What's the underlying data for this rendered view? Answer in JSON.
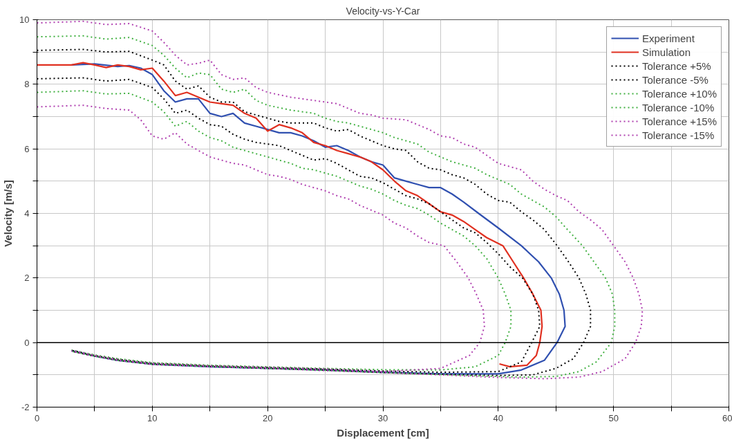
{
  "chart_data": {
    "type": "line",
    "title": "Velocity-vs-Y-Car",
    "xlabel": "Displacement [cm]",
    "ylabel": "Velocity [m/s]",
    "xlim": [
      0,
      60
    ],
    "ylim": [
      -2,
      10
    ],
    "xticks": [
      0,
      {
        "value": 5,
        "label": null
      },
      10,
      {
        "value": 15,
        "label": null
      },
      20,
      {
        "value": 25,
        "label": null
      },
      30,
      {
        "value": 35,
        "label": null
      },
      40,
      {
        "value": 45,
        "label": null
      },
      50,
      {
        "value": 55,
        "label": null
      },
      60
    ],
    "yticks": [
      -2,
      {
        "value": -1,
        "label": null
      },
      0,
      {
        "value": 1,
        "label": null
      },
      2,
      {
        "value": 3,
        "label": null
      },
      4,
      {
        "value": 5,
        "label": null
      },
      6,
      {
        "value": 7,
        "label": null
      },
      8,
      {
        "value": 9,
        "label": null
      },
      10
    ],
    "grid": true,
    "legend": "top right",
    "marker": "none",
    "ref_lines": [
      {
        "axis": "y",
        "value": 0,
        "label": null,
        "color": "#000000"
      }
    ],
    "series": [
      {
        "name": "Experiment",
        "color": "#3050b0",
        "line_style": "solid",
        "x": [
          3,
          5,
          7,
          8,
          9,
          10,
          11,
          12,
          13,
          14,
          15,
          16,
          17,
          18,
          19,
          20,
          21,
          22,
          23,
          24,
          25,
          26,
          27,
          28,
          29,
          30,
          31,
          32,
          33,
          34,
          35,
          36,
          37,
          38.3,
          40,
          42,
          43.5,
          44.6,
          45.3,
          45.7,
          45.8,
          45.1,
          44,
          42,
          40,
          35,
          30,
          25,
          20,
          15,
          10,
          7,
          5,
          3
        ],
        "values": [
          8.6,
          8.63,
          8.55,
          8.58,
          8.5,
          8.3,
          7.8,
          7.45,
          7.55,
          7.55,
          7.1,
          7.0,
          7.1,
          6.8,
          6.7,
          6.6,
          6.5,
          6.5,
          6.4,
          6.25,
          6.05,
          6.1,
          5.95,
          5.75,
          5.6,
          5.5,
          5.1,
          5.0,
          4.9,
          4.8,
          4.8,
          4.6,
          4.35,
          4.0,
          3.55,
          3.0,
          2.5,
          2.0,
          1.5,
          1.0,
          0.5,
          0,
          -0.55,
          -0.85,
          -0.97,
          -0.97,
          -0.92,
          -0.85,
          -0.8,
          -0.75,
          -0.67,
          -0.55,
          -0.42,
          -0.25
        ]
      },
      {
        "name": "Simulation",
        "color": "#e03020",
        "line_style": "solid",
        "x": [
          0,
          3,
          4,
          5,
          6,
          7,
          8,
          9,
          10,
          11,
          12,
          13,
          14,
          15,
          16,
          17,
          18,
          19,
          20,
          21,
          22,
          23,
          24,
          25,
          26,
          27,
          28,
          29,
          30,
          31,
          32,
          33,
          34,
          35,
          36,
          37,
          38,
          39,
          40.4,
          41.3,
          42.2,
          43,
          43.7,
          43.8,
          43.6,
          43.3,
          42.5,
          41,
          40.1
        ],
        "values": [
          8.6,
          8.6,
          8.67,
          8.6,
          8.52,
          8.6,
          8.55,
          8.45,
          8.5,
          8.1,
          7.65,
          7.75,
          7.6,
          7.45,
          7.4,
          7.35,
          7.1,
          6.95,
          6.55,
          6.75,
          6.65,
          6.5,
          6.2,
          6.1,
          5.95,
          5.85,
          5.75,
          5.6,
          5.35,
          5.0,
          4.7,
          4.55,
          4.3,
          4.05,
          3.95,
          3.75,
          3.5,
          3.25,
          3.0,
          2.5,
          2.0,
          1.5,
          1.0,
          0.5,
          0,
          -0.4,
          -0.7,
          -0.75,
          -0.66
        ]
      },
      {
        "name": "Tolerance +5%",
        "color": "#000000",
        "line_style": "dotted",
        "x": [
          0,
          4,
          6,
          8,
          10,
          11,
          12,
          13,
          14,
          15,
          16,
          17,
          18,
          19,
          20,
          21,
          22,
          24,
          25,
          26,
          27,
          28,
          29,
          30,
          31,
          32,
          33,
          34,
          35,
          36,
          37,
          38,
          39,
          40,
          41,
          42,
          43,
          44,
          45,
          46,
          47,
          47.6,
          48,
          48,
          47.4,
          46.5,
          45,
          43,
          40,
          35,
          30,
          25,
          20,
          15,
          10,
          7,
          5,
          3
        ],
        "values": [
          9.05,
          9.08,
          9.0,
          9.02,
          8.75,
          8.6,
          8.1,
          7.85,
          7.95,
          7.6,
          7.45,
          7.45,
          7.15,
          7.05,
          6.95,
          6.85,
          6.8,
          6.8,
          6.65,
          6.55,
          6.6,
          6.4,
          6.25,
          6.1,
          6.0,
          5.95,
          5.6,
          5.4,
          5.35,
          5.2,
          5.1,
          4.9,
          4.6,
          4.4,
          4.35,
          4.05,
          3.8,
          3.5,
          3.05,
          2.55,
          2.0,
          1.5,
          1.0,
          0.5,
          0,
          -0.5,
          -0.8,
          -1.0,
          -1.02,
          -0.98,
          -0.93,
          -0.85,
          -0.8,
          -0.74,
          -0.67,
          -0.55,
          -0.42,
          -0.27
        ]
      },
      {
        "name": "Tolerance -5%",
        "color": "#000000",
        "line_style": "dotted",
        "x": [
          0,
          4,
          6,
          8,
          10,
          11,
          12,
          13,
          14,
          15,
          16,
          17,
          18,
          19,
          20,
          21,
          22,
          23,
          24,
          25,
          26,
          27,
          28,
          29,
          30,
          31,
          32,
          33,
          34,
          35,
          36,
          37,
          38,
          39,
          40,
          41,
          42.1,
          43,
          43.5,
          43.6,
          42.9,
          42,
          40,
          35,
          30,
          25,
          20,
          15,
          10,
          7,
          5,
          3
        ],
        "values": [
          8.17,
          8.2,
          8.1,
          8.15,
          7.9,
          7.55,
          7.1,
          7.2,
          6.95,
          6.75,
          6.7,
          6.45,
          6.3,
          6.2,
          6.15,
          6.1,
          5.95,
          5.8,
          5.65,
          5.7,
          5.55,
          5.35,
          5.15,
          5.1,
          4.95,
          4.75,
          4.55,
          4.45,
          4.3,
          4.05,
          3.8,
          3.55,
          3.4,
          3.1,
          2.75,
          2.35,
          2.0,
          1.5,
          1.0,
          0.5,
          0,
          -0.6,
          -0.9,
          -0.92,
          -0.88,
          -0.82,
          -0.77,
          -0.72,
          -0.64,
          -0.52,
          -0.4,
          -0.24
        ]
      },
      {
        "name": "Tolerance +10%",
        "color": "#40b040",
        "line_style": "dotted",
        "x": [
          0,
          4,
          6,
          8,
          10,
          11,
          12,
          13,
          14,
          15,
          16,
          17,
          18,
          19,
          20,
          22,
          24,
          25,
          26,
          27,
          28,
          29,
          30,
          31,
          32,
          33,
          34,
          35,
          36,
          37,
          38,
          39,
          40,
          41,
          42,
          43,
          44,
          45,
          46,
          47.3,
          48.3,
          49.3,
          49.9,
          50.1,
          50.1,
          49.8,
          48.5,
          47,
          45,
          42,
          38,
          35,
          30,
          25,
          20,
          15,
          10,
          7,
          5,
          3
        ],
        "values": [
          9.47,
          9.5,
          9.4,
          9.45,
          9.2,
          8.9,
          8.5,
          8.2,
          8.35,
          8.3,
          7.85,
          7.75,
          7.85,
          7.5,
          7.35,
          7.2,
          7.1,
          6.95,
          6.85,
          6.8,
          6.7,
          6.6,
          6.5,
          6.35,
          6.25,
          6.15,
          5.9,
          5.75,
          5.6,
          5.5,
          5.4,
          5.2,
          5.05,
          4.9,
          4.6,
          4.4,
          4.2,
          3.9,
          3.5,
          3.0,
          2.5,
          2.0,
          1.5,
          1.0,
          0.5,
          0,
          -0.6,
          -0.9,
          -1.05,
          -1.07,
          -1.03,
          -0.99,
          -0.93,
          -0.86,
          -0.8,
          -0.74,
          -0.67,
          -0.55,
          -0.42,
          -0.27
        ]
      },
      {
        "name": "Tolerance -10%",
        "color": "#40b040",
        "line_style": "dotted",
        "x": [
          0,
          4,
          6,
          8,
          10,
          11,
          12,
          13,
          14,
          15,
          16,
          17,
          18,
          19,
          20,
          21,
          22,
          23,
          24,
          25,
          26,
          27,
          28,
          29,
          30,
          31,
          32,
          33,
          34,
          35,
          36,
          37,
          38,
          39,
          40,
          40.6,
          41.1,
          41.1,
          40.6,
          40,
          38,
          35,
          30,
          25,
          20,
          15,
          10,
          7,
          5,
          3
        ],
        "values": [
          7.75,
          7.8,
          7.7,
          7.72,
          7.45,
          7.15,
          6.7,
          6.85,
          6.55,
          6.35,
          6.25,
          6.05,
          5.95,
          5.85,
          5.75,
          5.65,
          5.55,
          5.4,
          5.35,
          5.25,
          5.15,
          5.0,
          4.85,
          4.75,
          4.6,
          4.4,
          4.25,
          4.15,
          3.95,
          3.7,
          3.5,
          3.3,
          3.0,
          2.6,
          2.0,
          1.5,
          1.0,
          0.5,
          0,
          -0.4,
          -0.75,
          -0.85,
          -0.84,
          -0.8,
          -0.75,
          -0.7,
          -0.62,
          -0.5,
          -0.38,
          -0.23
        ]
      },
      {
        "name": "Tolerance +15%",
        "color": "#b040b0",
        "line_style": "dotted",
        "x": [
          0,
          4,
          6,
          8,
          10,
          11,
          12,
          13,
          14,
          15,
          16,
          17,
          18,
          19,
          20,
          22,
          24,
          26,
          28,
          29,
          30,
          32,
          33,
          34,
          35,
          36,
          37,
          38,
          39,
          40,
          41,
          42,
          43,
          44,
          45,
          46,
          47,
          48,
          49,
          50,
          51,
          51.7,
          52.2,
          52.5,
          52.4,
          51.9,
          51,
          49,
          47,
          44,
          40,
          35,
          30,
          25,
          20,
          15,
          10,
          7,
          5,
          3
        ],
        "values": [
          9.9,
          9.95,
          9.85,
          9.88,
          9.65,
          9.3,
          8.9,
          8.6,
          8.65,
          8.75,
          8.3,
          8.15,
          8.2,
          7.9,
          7.75,
          7.6,
          7.5,
          7.4,
          7.1,
          7.05,
          6.95,
          6.9,
          6.75,
          6.6,
          6.4,
          6.35,
          6.15,
          6.05,
          5.8,
          5.55,
          5.45,
          5.35,
          5.0,
          4.75,
          4.55,
          4.4,
          4.05,
          3.8,
          3.5,
          3.0,
          2.5,
          2.0,
          1.5,
          1.0,
          0.5,
          0,
          -0.5,
          -0.9,
          -1.07,
          -1.12,
          -1.08,
          -1.0,
          -0.93,
          -0.87,
          -0.8,
          -0.75,
          -0.68,
          -0.55,
          -0.42,
          -0.27
        ]
      },
      {
        "name": "Tolerance -15%",
        "color": "#b040b0",
        "line_style": "dotted",
        "x": [
          0,
          4,
          6,
          8,
          9,
          10,
          11,
          12,
          13,
          14,
          15,
          16,
          17,
          18,
          19,
          20,
          21,
          22,
          23,
          24,
          25,
          26,
          27,
          28,
          29,
          30,
          31,
          32,
          33,
          34,
          35.3,
          36.4,
          37.4,
          38.1,
          38.7,
          38.8,
          38.4,
          37.5,
          35,
          30,
          25,
          20,
          15,
          10,
          7,
          5,
          3
        ],
        "values": [
          7.3,
          7.35,
          7.25,
          7.2,
          6.9,
          6.4,
          6.3,
          6.5,
          6.15,
          5.95,
          5.75,
          5.65,
          5.55,
          5.5,
          5.35,
          5.2,
          5.15,
          5.05,
          4.9,
          4.8,
          4.7,
          4.55,
          4.45,
          4.25,
          4.1,
          3.95,
          3.7,
          3.55,
          3.3,
          3.1,
          3.0,
          2.5,
          2.0,
          1.5,
          1.0,
          0.5,
          0,
          -0.4,
          -0.8,
          -0.9,
          -0.82,
          -0.77,
          -0.72,
          -0.65,
          -0.53,
          -0.4,
          -0.24
        ]
      }
    ]
  }
}
